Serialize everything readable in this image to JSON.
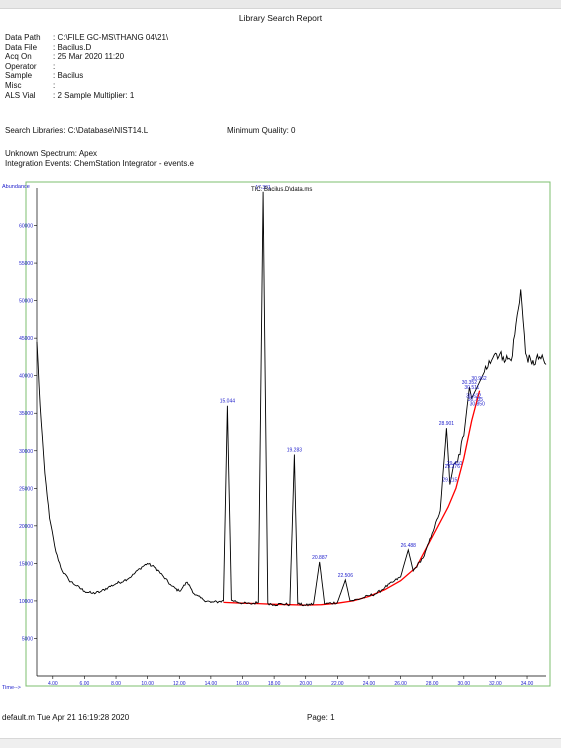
{
  "report": {
    "title": "Library Search Report",
    "meta": [
      {
        "key": "Data Path",
        "value": ": C:\\FILE GC-MS\\THANG 04\\21\\"
      },
      {
        "key": "Data File",
        "value": ": Bacilus.D"
      },
      {
        "key": "Acq On",
        "value": ": 25 Mar 2020  11:20"
      },
      {
        "key": "Operator",
        "value": ":"
      },
      {
        "key": "Sample",
        "value": ": Bacilus"
      },
      {
        "key": "Misc",
        "value": ":"
      },
      {
        "key": "ALS Vial",
        "value": ": 2   Sample Multiplier: 1"
      }
    ],
    "search_libraries": "Search Libraries:   C:\\Database\\NIST14.L",
    "minimum_quality": "Minimum Quality:  0",
    "unknown_spectrum": "Unknown Spectrum:   Apex",
    "integration_events": "Integration Events: ChemStation Integrator - events.e",
    "footer_left": "default.m Tue Apr 21 16:19:28 2020",
    "footer_right": "Page: 1"
  },
  "chart_data": {
    "type": "line",
    "title": "TIC: Bacilus.D\\data.ms",
    "ylabel": "Abundance",
    "xlabel": "Time-->",
    "x_ticks": [
      "4.00",
      "6.00",
      "8.00",
      "10.00",
      "12.00",
      "14.00",
      "16.00",
      "18.00",
      "20.00",
      "22.00",
      "24.00",
      "26.00",
      "28.00",
      "30.00",
      "32.00",
      "34.00"
    ],
    "y_ticks": [
      "5000",
      "10000",
      "15000",
      "20000",
      "25000",
      "30000",
      "35000",
      "40000",
      "45000",
      "50000",
      "55000",
      "60000"
    ],
    "xlim": [
      3.0,
      35.2
    ],
    "ylim": [
      0,
      65000
    ],
    "peaks": [
      {
        "label": "15.044",
        "rt": 15.044,
        "abundance": 36000
      },
      {
        "label": "17.301",
        "rt": 17.301,
        "abundance": 64500
      },
      {
        "label": "19.283",
        "rt": 19.283,
        "abundance": 29500
      },
      {
        "label": "20.887",
        "rt": 20.887,
        "abundance": 15200
      },
      {
        "label": "22.506",
        "rt": 22.506,
        "abundance": 12800
      },
      {
        "label": "26.488",
        "rt": 26.488,
        "abundance": 16800
      },
      {
        "label": "28.901",
        "rt": 28.901,
        "abundance": 33000
      },
      {
        "label": "29.115",
        "rt": 29.115,
        "abundance": 25500
      },
      {
        "label": "29.276",
        "rt": 29.276,
        "abundance": 27300
      },
      {
        "label": "29.410",
        "rt": 29.41,
        "abundance": 27700
      },
      {
        "label": "30.352",
        "rt": 30.352,
        "abundance": 38500
      },
      {
        "label": "30.511",
        "rt": 30.511,
        "abundance": 37800
      },
      {
        "label": "30.622",
        "rt": 30.622,
        "abundance": 36700
      },
      {
        "label": "30.735",
        "rt": 30.735,
        "abundance": 36200
      },
      {
        "label": "30.850",
        "rt": 30.85,
        "abundance": 35600
      },
      {
        "label": "30.962",
        "rt": 30.962,
        "abundance": 39000
      }
    ],
    "series": [
      {
        "values": [
          [
            3.0,
            44500
          ],
          [
            3.2,
            36000
          ],
          [
            3.5,
            27000
          ],
          [
            3.8,
            21000
          ],
          [
            4.2,
            16500
          ],
          [
            4.6,
            14000
          ],
          [
            5.0,
            12800
          ],
          [
            5.5,
            12000
          ],
          [
            6.0,
            11300
          ],
          [
            6.5,
            11000
          ],
          [
            7.0,
            11200
          ],
          [
            7.5,
            11800
          ],
          [
            8.0,
            12300
          ],
          [
            8.5,
            12700
          ],
          [
            9.0,
            13300
          ],
          [
            9.5,
            14300
          ],
          [
            10.0,
            15000
          ],
          [
            10.5,
            14400
          ],
          [
            11.0,
            13200
          ],
          [
            11.5,
            12000
          ],
          [
            12.0,
            11300
          ],
          [
            12.5,
            12500
          ],
          [
            13.0,
            10800
          ],
          [
            13.5,
            10200
          ],
          [
            14.0,
            9800
          ],
          [
            14.5,
            9900
          ],
          [
            14.8,
            10000
          ],
          [
            15.044,
            36000
          ],
          [
            15.3,
            10100
          ],
          [
            16.0,
            9700
          ],
          [
            16.5,
            9600
          ],
          [
            17.0,
            9800
          ],
          [
            17.301,
            64500
          ],
          [
            17.6,
            9700
          ],
          [
            18.0,
            9500
          ],
          [
            18.5,
            9600
          ],
          [
            19.0,
            9500
          ],
          [
            19.283,
            29500
          ],
          [
            19.5,
            9600
          ],
          [
            20.0,
            9400
          ],
          [
            20.5,
            9600
          ],
          [
            20.887,
            15200
          ],
          [
            21.2,
            9600
          ],
          [
            22.0,
            9800
          ],
          [
            22.506,
            12800
          ],
          [
            22.8,
            10000
          ],
          [
            23.5,
            10300
          ],
          [
            24.0,
            10700
          ],
          [
            24.5,
            11000
          ],
          [
            25.0,
            11800
          ],
          [
            25.5,
            12500
          ],
          [
            26.0,
            13200
          ],
          [
            26.488,
            16800
          ],
          [
            26.8,
            14000
          ],
          [
            27.5,
            16000
          ],
          [
            28.0,
            19000
          ],
          [
            28.5,
            22000
          ],
          [
            28.901,
            33000
          ],
          [
            29.115,
            25500
          ],
          [
            29.3,
            27500
          ],
          [
            29.6,
            28500
          ],
          [
            30.0,
            32000
          ],
          [
            30.352,
            38500
          ],
          [
            30.5,
            37000
          ],
          [
            30.962,
            39000
          ],
          [
            31.3,
            40500
          ],
          [
            31.6,
            42000
          ],
          [
            32.0,
            43000
          ],
          [
            32.5,
            42500
          ],
          [
            33.0,
            42000
          ],
          [
            33.6,
            51500
          ],
          [
            33.9,
            43000
          ],
          [
            34.3,
            41500
          ],
          [
            34.8,
            42500
          ],
          [
            35.2,
            41500
          ]
        ]
      }
    ],
    "baseline": [
      [
        14.8,
        9800
      ],
      [
        16.0,
        9700
      ],
      [
        17.0,
        9650
      ],
      [
        18.0,
        9550
      ],
      [
        19.0,
        9500
      ],
      [
        20.0,
        9450
      ],
      [
        21.0,
        9500
      ],
      [
        22.0,
        9700
      ],
      [
        23.0,
        10000
      ],
      [
        24.0,
        10600
      ],
      [
        25.0,
        11500
      ],
      [
        26.0,
        12700
      ],
      [
        27.0,
        14500
      ],
      [
        28.0,
        18500
      ],
      [
        29.0,
        22500
      ],
      [
        29.5,
        25000
      ],
      [
        30.0,
        29000
      ],
      [
        30.5,
        34000
      ],
      [
        31.0,
        38000
      ]
    ],
    "colors": {
      "trace": "#000000",
      "baseline": "#ff0000",
      "labels": "#2222cc",
      "frame": "#7cbf6f"
    },
    "grid": false
  }
}
